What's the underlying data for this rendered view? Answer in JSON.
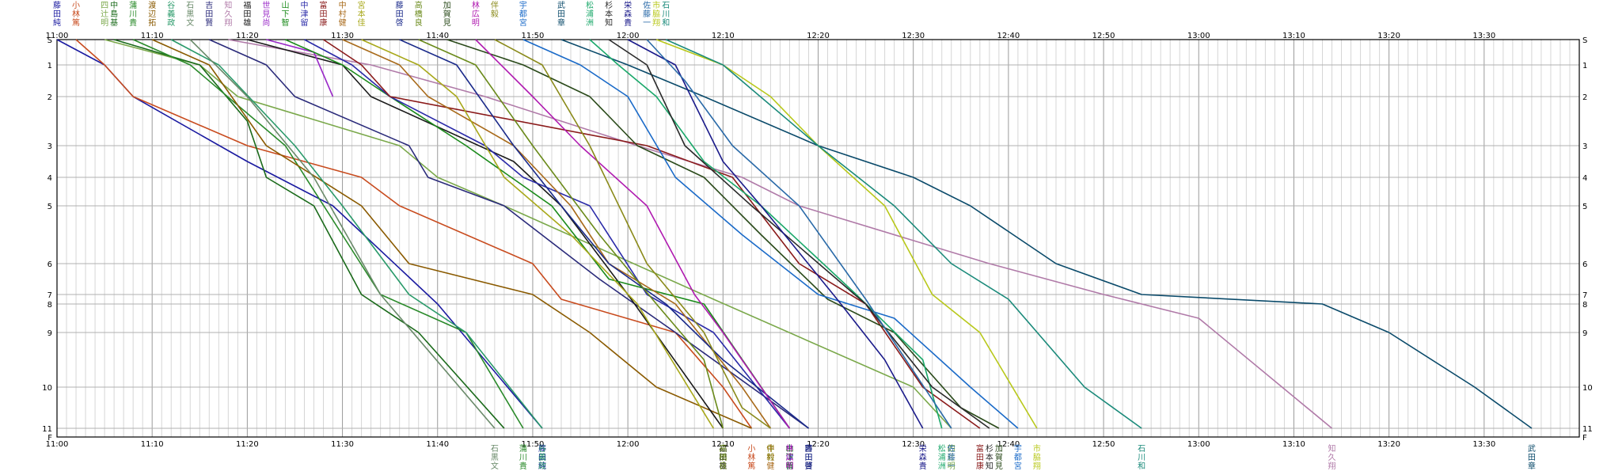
{
  "chart_data": {
    "type": "line",
    "title": "",
    "xlabel": "",
    "ylabel": "",
    "xlim": [
      "11:00",
      "13:40"
    ],
    "x_ticks": [
      "11:00",
      "11:10",
      "11:20",
      "11:30",
      "11:40",
      "11:50",
      "12:00",
      "12:10",
      "12:20",
      "12:30",
      "12:40",
      "12:50",
      "13:00",
      "13:10",
      "13:20",
      "13:30"
    ],
    "y_ticks": [
      "S",
      "1",
      "2",
      "3",
      "4",
      "5",
      "6",
      "7",
      "8",
      "9",
      "10",
      "11",
      "F"
    ],
    "y_scale": "course-distance (unevenly spaced checkpoints)",
    "grid": true,
    "legend": "runner names top and bottom",
    "series": [
      {
        "name": "藤田純",
        "color": "#1a1aa0",
        "points": [
          [
            "11:00",
            "S"
          ],
          [
            "11:05",
            "1"
          ],
          [
            "11:08",
            "2"
          ],
          [
            "11:20",
            "3.5"
          ],
          [
            "11:29",
            "5"
          ],
          [
            "11:40",
            "8"
          ],
          [
            "11:51",
            "11"
          ]
        ]
      },
      {
        "name": "小林篤",
        "color": "#c84b1e",
        "points": [
          [
            "11:02",
            "S"
          ],
          [
            "11:05",
            "1"
          ],
          [
            "11:08",
            "2"
          ],
          [
            "11:20",
            "3"
          ],
          [
            "11:32",
            "4"
          ],
          [
            "11:36",
            "5"
          ],
          [
            "11:50",
            "6"
          ],
          [
            "11:53",
            "7.5"
          ],
          [
            "12:05",
            "9"
          ],
          [
            "12:10",
            "10"
          ],
          [
            "12:13",
            "11"
          ]
        ]
      },
      {
        "name": "四辻明",
        "color": "#7aa84a",
        "points": [
          [
            "11:05",
            "S"
          ],
          [
            "11:15",
            "1"
          ],
          [
            "11:19",
            "2"
          ],
          [
            "11:36",
            "3"
          ],
          [
            "11:40",
            "4"
          ],
          [
            "11:47",
            "5"
          ],
          [
            "12:09",
            "7.5"
          ],
          [
            "12:30",
            "10"
          ],
          [
            "12:34",
            "11"
          ]
        ]
      },
      {
        "name": "中島基",
        "color": "#1a6a1a",
        "points": [
          [
            "11:06",
            "S"
          ],
          [
            "11:15",
            "1"
          ],
          [
            "11:20",
            "2.5"
          ],
          [
            "11:22",
            "4"
          ],
          [
            "11:27",
            "5"
          ],
          [
            "11:32",
            "7"
          ],
          [
            "11:38",
            "9"
          ],
          [
            "11:47",
            "11"
          ]
        ]
      },
      {
        "name": "蒲川貴",
        "color": "#2a8a2a",
        "points": [
          [
            "11:08",
            "S"
          ],
          [
            "11:14",
            "1"
          ],
          [
            "11:24",
            "3"
          ],
          [
            "11:34",
            "7"
          ],
          [
            "11:43",
            "9"
          ],
          [
            "11:49",
            "11"
          ]
        ]
      },
      {
        "name": "渡辺拓",
        "color": "#8a5a00",
        "points": [
          [
            "11:10",
            "S"
          ],
          [
            "11:16",
            "1"
          ],
          [
            "11:22",
            "3"
          ],
          [
            "11:32",
            "5"
          ],
          [
            "11:37",
            "6"
          ],
          [
            "11:50",
            "7"
          ],
          [
            "11:56",
            "9"
          ],
          [
            "12:03",
            "10"
          ],
          [
            "12:13",
            "11"
          ]
        ]
      },
      {
        "name": "谷義政",
        "color": "#2a9a6a",
        "points": [
          [
            "11:12",
            "S"
          ],
          [
            "11:17",
            "1"
          ],
          [
            "11:25",
            "3"
          ],
          [
            "11:30",
            "5"
          ],
          [
            "11:37",
            "7"
          ],
          [
            "11:43",
            "9"
          ],
          [
            "11:51",
            "11"
          ]
        ]
      },
      {
        "name": "石黒文",
        "color": "#6a8a6a",
        "points": [
          [
            "11:14",
            "S"
          ],
          [
            "11:20",
            "2"
          ],
          [
            "11:27",
            "4"
          ],
          [
            "11:34",
            "7"
          ],
          [
            "11:46",
            "11"
          ]
        ]
      },
      {
        "name": "吉田賢",
        "color": "#2a2a7a",
        "points": [
          [
            "11:16",
            "S"
          ],
          [
            "11:22",
            "1"
          ],
          [
            "11:25",
            "2"
          ],
          [
            "11:37",
            "3"
          ],
          [
            "11:39",
            "4"
          ],
          [
            "11:47",
            "5"
          ],
          [
            "11:57",
            "6.5"
          ],
          [
            "12:05",
            "9"
          ],
          [
            "12:19",
            "11"
          ]
        ]
      },
      {
        "name": "知久翔",
        "color": "#b07aa8",
        "points": [
          [
            "11:18",
            "S"
          ],
          [
            "11:33",
            "1"
          ],
          [
            "11:45",
            "2"
          ],
          [
            "12:01",
            "3"
          ],
          [
            "12:12",
            "4"
          ],
          [
            "12:18",
            "5"
          ],
          [
            "12:38",
            "6"
          ],
          [
            "12:50",
            "7"
          ],
          [
            "13:00",
            "8.5"
          ],
          [
            "13:14",
            "11"
          ]
        ]
      },
      {
        "name": "福田雄",
        "color": "#1a1a1a",
        "points": [
          [
            "11:20",
            "S"
          ],
          [
            "11:30",
            "1"
          ],
          [
            "11:33",
            "2"
          ],
          [
            "11:48",
            "3.5"
          ],
          [
            "11:53",
            "5"
          ],
          [
            "12:00",
            "7"
          ],
          [
            "12:10",
            "11"
          ]
        ]
      },
      {
        "name": "世見尚",
        "color": "#9a2ac8",
        "points": [
          [
            "11:22",
            "S"
          ],
          [
            "11:27",
            "0.5"
          ],
          [
            "11:29",
            "2"
          ]
        ]
      },
      {
        "name": "山下智",
        "color": "#1a8a1a",
        "points": [
          [
            "11:24",
            "S"
          ],
          [
            "11:30",
            "1"
          ],
          [
            "11:35",
            "2"
          ],
          [
            "11:43",
            "3"
          ],
          [
            "11:52",
            "5"
          ],
          [
            "11:58",
            "6.5"
          ],
          [
            "12:08",
            "8"
          ],
          [
            "12:17",
            "11"
          ]
        ]
      },
      {
        "name": "中津留",
        "color": "#2a2aa8",
        "points": [
          [
            "11:26",
            "S"
          ],
          [
            "11:31",
            "1"
          ],
          [
            "11:35",
            "2"
          ],
          [
            "11:45",
            "3"
          ],
          [
            "11:49",
            "4"
          ],
          [
            "11:56",
            "5"
          ],
          [
            "12:02",
            "7"
          ],
          [
            "12:09",
            "9"
          ],
          [
            "12:17",
            "11"
          ]
        ]
      },
      {
        "name": "富田康",
        "color": "#8a1a1a",
        "points": [
          [
            "11:28",
            "S"
          ],
          [
            "11:32",
            "1"
          ],
          [
            "11:35",
            "2"
          ],
          [
            "12:02",
            "3"
          ],
          [
            "12:11",
            "4"
          ],
          [
            "12:18",
            "6"
          ],
          [
            "12:25",
            "8"
          ],
          [
            "12:31",
            "10"
          ],
          [
            "12:37",
            "11"
          ]
        ]
      },
      {
        "name": "中村健",
        "color": "#a86a1a",
        "points": [
          [
            "11:30",
            "S"
          ],
          [
            "11:36",
            "1"
          ],
          [
            "11:39",
            "2"
          ],
          [
            "11:48",
            "3"
          ],
          [
            "11:54",
            "5"
          ],
          [
            "11:58",
            "6"
          ],
          [
            "12:05",
            "8"
          ],
          [
            "12:12",
            "10"
          ],
          [
            "12:15",
            "11"
          ]
        ]
      },
      {
        "name": "宮本佳",
        "color": "#a8a81a",
        "points": [
          [
            "11:32",
            "S"
          ],
          [
            "11:38",
            "1"
          ],
          [
            "11:42",
            "2"
          ],
          [
            "11:47",
            "4"
          ],
          [
            "11:54",
            "5.5"
          ],
          [
            "12:01",
            "8"
          ],
          [
            "12:09",
            "11"
          ]
        ]
      },
      {
        "name": "藤田啓",
        "color": "#1a2a8a",
        "points": [
          [
            "11:36",
            "S"
          ],
          [
            "11:42",
            "1"
          ],
          [
            "11:48",
            "3"
          ],
          [
            "11:53",
            "5"
          ],
          [
            "11:58",
            "6"
          ],
          [
            "12:04",
            "8"
          ],
          [
            "12:10",
            "9.5"
          ],
          [
            "12:19",
            "11"
          ]
        ]
      },
      {
        "name": "高橋良",
        "color": "#6a8a1a",
        "points": [
          [
            "11:38",
            "S"
          ],
          [
            "11:44",
            "1"
          ],
          [
            "11:50",
            "3"
          ],
          [
            "11:57",
            "5.5"
          ],
          [
            "12:03",
            "8"
          ],
          [
            "12:08",
            "9.5"
          ],
          [
            "12:10",
            "11"
          ]
        ]
      },
      {
        "name": "加賀見",
        "color": "#2a4a1a",
        "points": [
          [
            "11:41",
            "S"
          ],
          [
            "11:49",
            "1"
          ],
          [
            "11:56",
            "2"
          ],
          [
            "12:01",
            "3"
          ],
          [
            "12:08",
            "4"
          ],
          [
            "12:14",
            "5.5"
          ],
          [
            "12:21",
            "7.5"
          ],
          [
            "12:28",
            "9"
          ],
          [
            "12:35",
            "10.5"
          ],
          [
            "12:39",
            "11"
          ]
        ]
      },
      {
        "name": "林広明",
        "color": "#b01ab0",
        "points": [
          [
            "11:44",
            "S"
          ],
          [
            "11:50",
            "2"
          ],
          [
            "11:55",
            "3"
          ],
          [
            "12:02",
            "5"
          ],
          [
            "12:07",
            "7"
          ],
          [
            "12:10",
            "9"
          ],
          [
            "12:17",
            "11"
          ]
        ]
      },
      {
        "name": "伴毅",
        "color": "#8a8a1a",
        "points": [
          [
            "11:46",
            "S"
          ],
          [
            "11:51",
            "1"
          ],
          [
            "11:56",
            "3"
          ],
          [
            "12:02",
            "6"
          ],
          [
            "12:08",
            "9"
          ],
          [
            "12:12",
            "10.5"
          ],
          [
            "12:15",
            "11"
          ]
        ]
      },
      {
        "name": "宇都宮",
        "color": "#1a6ac8",
        "points": [
          [
            "11:49",
            "S"
          ],
          [
            "11:55",
            "1"
          ],
          [
            "12:00",
            "2"
          ],
          [
            "12:05",
            "4"
          ],
          [
            "12:12",
            "5.5"
          ],
          [
            "12:20",
            "7"
          ],
          [
            "12:28",
            "8.5"
          ],
          [
            "12:36",
            "10"
          ],
          [
            "12:41",
            "11"
          ]
        ]
      },
      {
        "name": "武田章",
        "color": "#0a4a6a",
        "points": [
          [
            "11:53",
            "S"
          ],
          [
            "12:00",
            "1"
          ],
          [
            "12:08",
            "2"
          ],
          [
            "12:20",
            "3"
          ],
          [
            "12:30",
            "4"
          ],
          [
            "12:36",
            "5"
          ],
          [
            "12:45",
            "6"
          ],
          [
            "12:54",
            "7"
          ],
          [
            "13:13",
            "8"
          ],
          [
            "13:20",
            "9"
          ],
          [
            "13:29",
            "10"
          ],
          [
            "13:35",
            "11"
          ]
        ]
      },
      {
        "name": "松浦洲",
        "color": "#1aa86a",
        "points": [
          [
            "11:56",
            "S"
          ],
          [
            "11:59",
            "1"
          ],
          [
            "12:03",
            "2"
          ],
          [
            "12:08",
            "3.5"
          ],
          [
            "12:14",
            "5"
          ],
          [
            "12:24",
            "7"
          ],
          [
            "12:31",
            "9.5"
          ],
          [
            "12:33",
            "11"
          ]
        ]
      },
      {
        "name": "杉本知",
        "color": "#2a2a2a",
        "points": [
          [
            "11:58",
            "S"
          ],
          [
            "12:02",
            "1"
          ],
          [
            "12:06",
            "3"
          ],
          [
            "12:13",
            "5"
          ],
          [
            "12:25",
            "8"
          ],
          [
            "12:32",
            "10"
          ],
          [
            "12:38",
            "11"
          ]
        ]
      },
      {
        "name": "栄森貴",
        "color": "#1a1a8a",
        "points": [
          [
            "12:00",
            "S"
          ],
          [
            "12:05",
            "1"
          ],
          [
            "12:10",
            "3.5"
          ],
          [
            "12:14",
            "5"
          ],
          [
            "12:22",
            "7.5"
          ],
          [
            "12:27",
            "9.5"
          ],
          [
            "12:31",
            "11"
          ]
        ]
      },
      {
        "name": "佐藤一",
        "color": "#2a6aa8",
        "points": [
          [
            "12:02",
            "S"
          ],
          [
            "12:06",
            "1.5"
          ],
          [
            "12:11",
            "3"
          ],
          [
            "12:18",
            "5"
          ],
          [
            "12:25",
            "7.5"
          ],
          [
            "12:34",
            "11"
          ]
        ]
      },
      {
        "name": "市脇翔",
        "color": "#b8c81a",
        "points": [
          [
            "12:03",
            "S"
          ],
          [
            "12:10",
            "1"
          ],
          [
            "12:15",
            "2"
          ],
          [
            "12:20",
            "3"
          ],
          [
            "12:27",
            "5"
          ],
          [
            "12:32",
            "7"
          ],
          [
            "12:37",
            "9"
          ],
          [
            "12:43",
            "11"
          ]
        ]
      },
      {
        "name": "石川和",
        "color": "#1a8a7a",
        "points": [
          [
            "12:04",
            "S"
          ],
          [
            "12:10",
            "1"
          ],
          [
            "12:20",
            "3"
          ],
          [
            "12:28",
            "5"
          ],
          [
            "12:34",
            "6"
          ],
          [
            "12:40",
            "7.5"
          ],
          [
            "12:48",
            "10"
          ],
          [
            "12:54",
            "11"
          ]
        ]
      }
    ],
    "top_labels": [
      "藤田純",
      "小林篤",
      "四辻明",
      "中島基",
      "蒲川貴",
      "渡辺拓",
      "谷義政",
      "石黒文",
      "吉田賢",
      "知久翔",
      "福田雄",
      "世見尚",
      "山下智",
      "中津留",
      "富田康",
      "中村健",
      "宮本佳",
      "藤田啓",
      "高橋良",
      "加賀見",
      "林広明",
      "伴毅",
      "宇都宮",
      "武田章",
      "松浦洲",
      "杉本知",
      "栄森貴",
      "佐藤一",
      "市脇翔",
      "石川和"
    ],
    "bottom_labels": [
      "石黒文",
      "蒲川貴",
      "藤田純",
      "谷義政",
      "福田雄",
      "高橋良",
      "中村健",
      "小林篤",
      "中津留",
      "山下智",
      "林広明",
      "伴毅",
      "吉田賢",
      "四辻明",
      "栄森貴",
      "松浦洲",
      "佐藤一",
      "杉本知",
      "富田康",
      "宇都宮",
      "藤田啓",
      "加賀見",
      "市脇翔",
      "石川和",
      "知久翔",
      "武田章"
    ]
  }
}
